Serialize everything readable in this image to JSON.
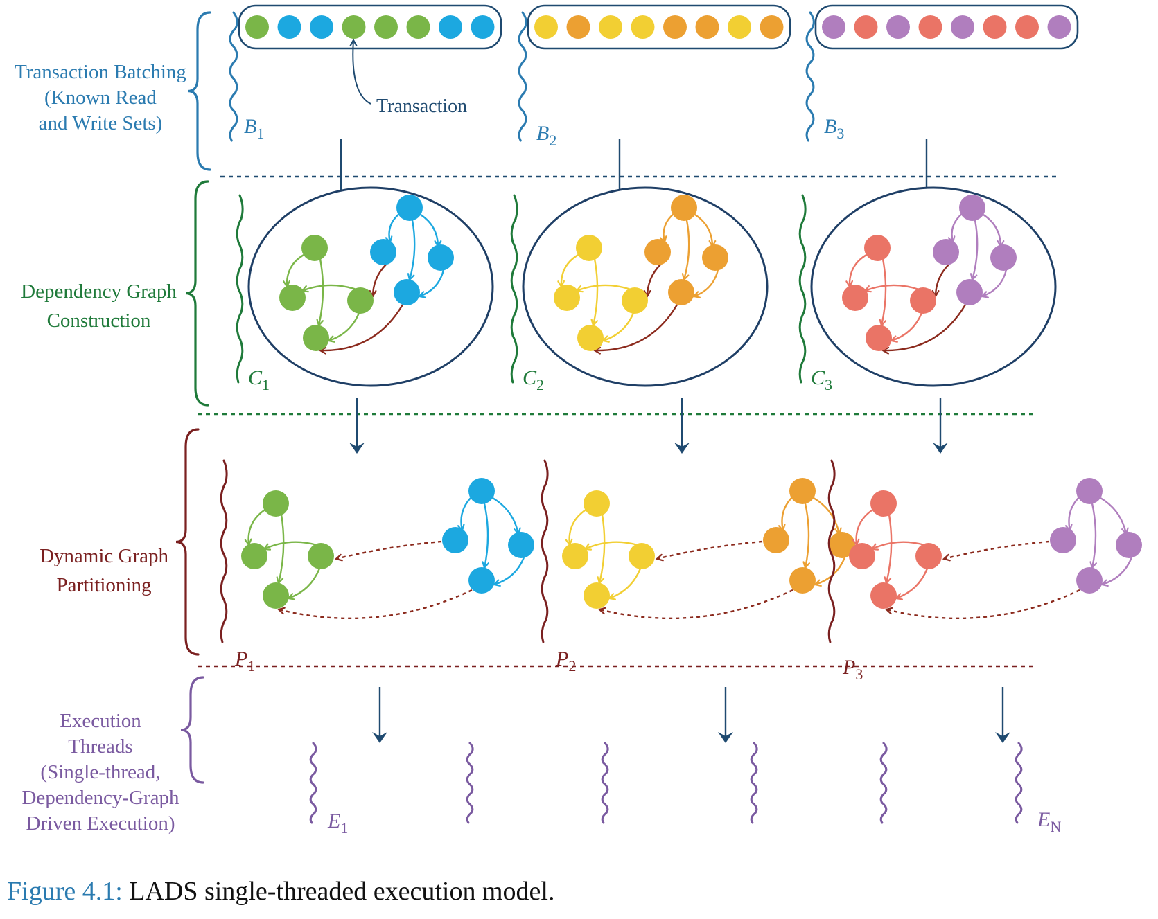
{
  "colors": {
    "batch": "#2b7bb0",
    "graph": "#1f7a3a",
    "partition": "#7a2020",
    "execution": "#7a5aa0",
    "ellipse": "#1f3f66",
    "arrow": "#1f4a70",
    "green": "#7ab648",
    "blue": "#1ca8e0",
    "yellow": "#f2cf33",
    "orange": "#eca032",
    "purple": "#b07ebe",
    "red": "#ea7466",
    "crossEdge": "#8b2a1d"
  },
  "stages": {
    "batching": [
      "Transaction Batching",
      "(Known Read",
      "and  Write Sets)"
    ],
    "graph": [
      "Dependency Graph",
      "Construction"
    ],
    "partition": [
      "Dynamic Graph",
      "Partitioning"
    ],
    "execution": [
      "Execution",
      "Threads",
      "(Single-thread,",
      "Dependency-Graph",
      "Driven Execution)"
    ]
  },
  "transaction_callout": "Transaction",
  "batches": [
    {
      "letter": "B",
      "sub": "1",
      "colors": [
        "green",
        "blue",
        "blue",
        "green",
        "green",
        "green",
        "blue",
        "blue"
      ]
    },
    {
      "letter": "B",
      "sub": "2",
      "colors": [
        "yellow",
        "orange",
        "yellow",
        "yellow",
        "orange",
        "orange",
        "yellow",
        "orange"
      ]
    },
    {
      "letter": "B",
      "sub": "3",
      "colors": [
        "purple",
        "red",
        "purple",
        "red",
        "purple",
        "red",
        "red",
        "purple"
      ]
    }
  ],
  "graphs": [
    {
      "letter": "C",
      "sub": "1",
      "colorA": "green",
      "colorB": "blue"
    },
    {
      "letter": "C",
      "sub": "2",
      "colorA": "yellow",
      "colorB": "orange"
    },
    {
      "letter": "C",
      "sub": "3",
      "colorA": "red",
      "colorB": "purple"
    }
  ],
  "partitions": [
    {
      "letter": "P",
      "sub": "1",
      "colorA": "green",
      "colorB": "blue"
    },
    {
      "letter": "P",
      "sub": "2",
      "colorA": "yellow",
      "colorB": "orange"
    },
    {
      "letter": "P",
      "sub": "3",
      "colorA": "red",
      "colorB": "purple"
    }
  ],
  "threads": [
    {
      "letter": "E",
      "sub": "1"
    },
    {
      "letter": "E",
      "sub": "N"
    }
  ],
  "caption": {
    "number": "Figure 4.1:",
    "text": " LADS single-threaded execution model."
  }
}
